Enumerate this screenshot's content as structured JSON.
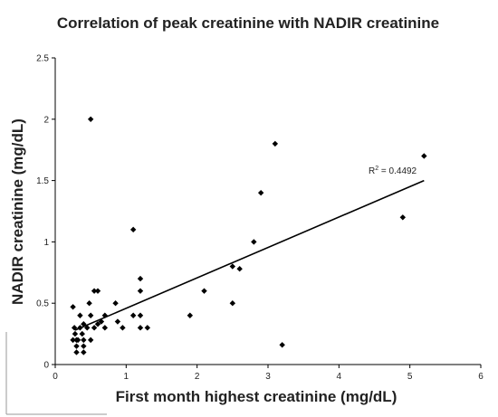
{
  "chart_data": {
    "type": "scatter",
    "title": "Correlation of peak creatinine with NADIR creatinine",
    "xlabel": "First month highest creatinine (mg/dL)",
    "ylabel": "NADIR creatinine (mg/dL)",
    "xlim": [
      0,
      6
    ],
    "ylim": [
      0,
      2.5
    ],
    "x_ticks": [
      "0",
      "1",
      "2",
      "3",
      "4",
      "5",
      "6"
    ],
    "y_ticks": [
      "0",
      "0.5",
      "1",
      "1.5",
      "2",
      "2.5"
    ],
    "grid": false,
    "marker_color": "#000000",
    "trendline": {
      "type": "linear",
      "x": [
        0.28,
        5.2
      ],
      "y": [
        0.28,
        1.5
      ],
      "r2_prefix": "R",
      "r2_sup": "2",
      "r2_value": " = 0.4492"
    },
    "points": [
      {
        "x": 0.25,
        "y": 0.47
      },
      {
        "x": 0.25,
        "y": 0.2
      },
      {
        "x": 0.27,
        "y": 0.3
      },
      {
        "x": 0.28,
        "y": 0.25
      },
      {
        "x": 0.3,
        "y": 0.2
      },
      {
        "x": 0.3,
        "y": 0.15
      },
      {
        "x": 0.3,
        "y": 0.1
      },
      {
        "x": 0.32,
        "y": 0.2
      },
      {
        "x": 0.35,
        "y": 0.4
      },
      {
        "x": 0.35,
        "y": 0.3
      },
      {
        "x": 0.38,
        "y": 0.25
      },
      {
        "x": 0.4,
        "y": 0.33
      },
      {
        "x": 0.4,
        "y": 0.2
      },
      {
        "x": 0.4,
        "y": 0.15
      },
      {
        "x": 0.4,
        "y": 0.1
      },
      {
        "x": 0.45,
        "y": 0.3
      },
      {
        "x": 0.48,
        "y": 0.5
      },
      {
        "x": 0.5,
        "y": 0.4
      },
      {
        "x": 0.5,
        "y": 0.2
      },
      {
        "x": 0.5,
        "y": 2.0
      },
      {
        "x": 0.55,
        "y": 0.3
      },
      {
        "x": 0.55,
        "y": 0.6
      },
      {
        "x": 0.6,
        "y": 0.6
      },
      {
        "x": 0.6,
        "y": 0.33
      },
      {
        "x": 0.65,
        "y": 0.35
      },
      {
        "x": 0.7,
        "y": 0.4
      },
      {
        "x": 0.7,
        "y": 0.3
      },
      {
        "x": 0.85,
        "y": 0.5
      },
      {
        "x": 0.88,
        "y": 0.35
      },
      {
        "x": 0.95,
        "y": 0.3
      },
      {
        "x": 1.1,
        "y": 1.1
      },
      {
        "x": 1.1,
        "y": 0.4
      },
      {
        "x": 1.2,
        "y": 0.7
      },
      {
        "x": 1.2,
        "y": 0.6
      },
      {
        "x": 1.2,
        "y": 0.4
      },
      {
        "x": 1.2,
        "y": 0.3
      },
      {
        "x": 1.3,
        "y": 0.3
      },
      {
        "x": 1.9,
        "y": 0.4
      },
      {
        "x": 2.1,
        "y": 0.6
      },
      {
        "x": 2.5,
        "y": 0.8
      },
      {
        "x": 2.5,
        "y": 0.5
      },
      {
        "x": 2.6,
        "y": 0.78
      },
      {
        "x": 2.8,
        "y": 1.0
      },
      {
        "x": 2.9,
        "y": 1.4
      },
      {
        "x": 3.1,
        "y": 1.8
      },
      {
        "x": 3.2,
        "y": 0.16
      },
      {
        "x": 4.9,
        "y": 1.2
      },
      {
        "x": 5.2,
        "y": 1.7
      }
    ]
  }
}
